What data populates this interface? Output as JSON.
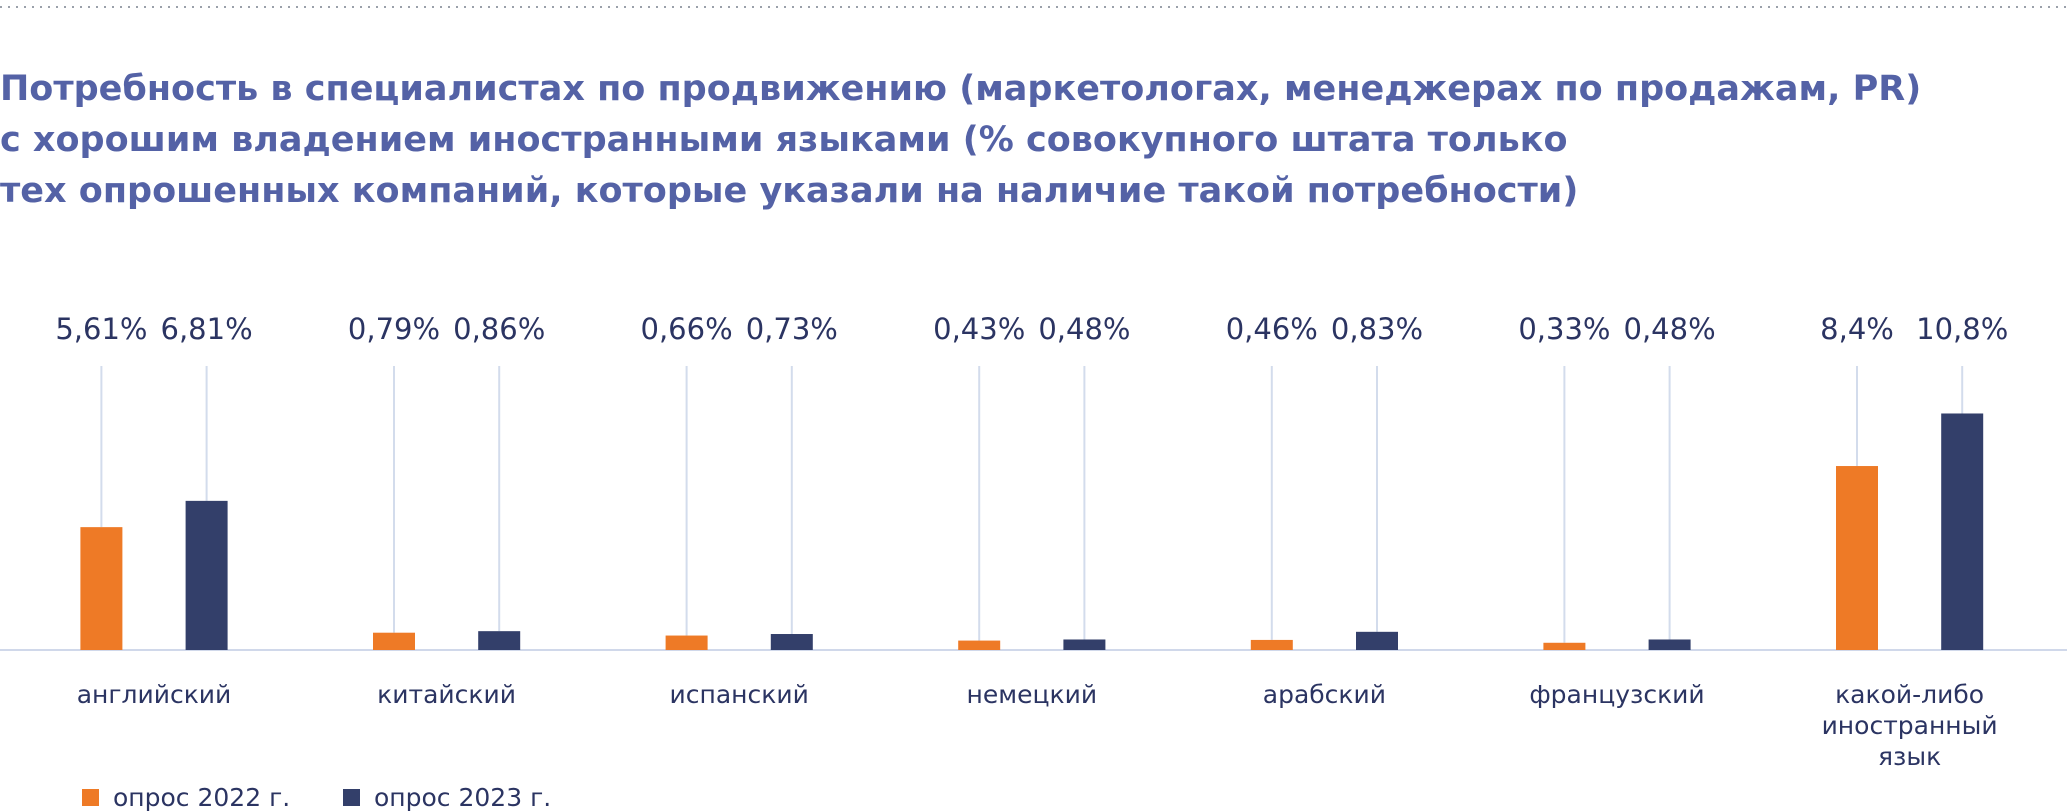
{
  "chart_data": {
    "type": "bar",
    "title": [
      "Потребность в специалистах по продвижению (маркетологах, менеджерах по продажам, PR)",
      "с хорошим владением иностранными языками (% совокупного штата только",
      "тех опрошенных компаний, которые указали на наличие такой потребности)"
    ],
    "categories": [
      "английский",
      "китайский",
      "испанский",
      "немецкий",
      "арабский",
      "французский",
      "какой-либо иностранный язык"
    ],
    "series": [
      {
        "name": "опрос 2022 г.",
        "color": "#ee7a26",
        "values": [
          5.61,
          0.79,
          0.66,
          0.43,
          0.46,
          0.33,
          8.4
        ],
        "value_labels": [
          "5,61%",
          "0,79%",
          "0,66%",
          "0,43%",
          "0,46%",
          "0,33%",
          "8,4%"
        ]
      },
      {
        "name": "опрос 2023 г.",
        "color": "#333f6a",
        "values": [
          6.81,
          0.86,
          0.73,
          0.48,
          0.83,
          0.48,
          10.8
        ],
        "value_labels": [
          "6,81%",
          "0,86%",
          "0,73%",
          "0,48%",
          "0,83%",
          "0,48%",
          "10,8%"
        ]
      }
    ]
  }
}
